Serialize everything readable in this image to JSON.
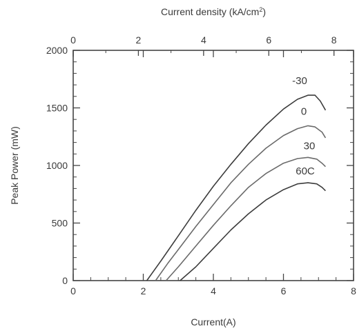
{
  "chart_data": {
    "type": "line",
    "xlabel": "Current(A)",
    "ylabel": "Peak Power (mW)",
    "top_xlabel_main": "Current density (kA/cm",
    "top_xlabel_sup": "2",
    "top_xlabel_end": ")",
    "xlim": [
      0,
      8
    ],
    "ylim": [
      0,
      2000
    ],
    "top_xlim": [
      0,
      8.6
    ],
    "xticks": [
      0,
      2,
      4,
      6,
      8
    ],
    "yticks": [
      0,
      500,
      1000,
      1500,
      2000
    ],
    "top_xticks": [
      0,
      2,
      4,
      6,
      8
    ],
    "grid": false,
    "series": [
      {
        "name": "-30",
        "color": "#3c3c3c",
        "x": [
          2.1,
          2.5,
          3.0,
          3.5,
          4.0,
          4.5,
          5.0,
          5.5,
          6.0,
          6.4,
          6.7,
          6.9,
          7.05,
          7.2
        ],
        "y": [
          0,
          170,
          390,
          610,
          820,
          1010,
          1190,
          1350,
          1490,
          1575,
          1610,
          1610,
          1560,
          1480
        ]
      },
      {
        "name": "0",
        "color": "#6a6a6a",
        "x": [
          2.35,
          2.7,
          3.0,
          3.5,
          4.0,
          4.5,
          5.0,
          5.5,
          6.0,
          6.4,
          6.7,
          6.9,
          7.1,
          7.2
        ],
        "y": [
          0,
          150,
          270,
          470,
          660,
          850,
          1010,
          1150,
          1260,
          1320,
          1345,
          1335,
          1290,
          1240
        ]
      },
      {
        "name": "30",
        "color": "#6a6a6a",
        "x": [
          2.65,
          3.0,
          3.5,
          4.0,
          4.5,
          5.0,
          5.5,
          6.0,
          6.4,
          6.7,
          6.95,
          7.1,
          7.2
        ],
        "y": [
          0,
          120,
          300,
          480,
          650,
          810,
          930,
          1020,
          1060,
          1070,
          1055,
          1020,
          990
        ]
      },
      {
        "name": "60C",
        "color": "#3c3c3c",
        "x": [
          3.05,
          3.5,
          4.0,
          4.5,
          5.0,
          5.5,
          6.0,
          6.4,
          6.7,
          6.95,
          7.1,
          7.2
        ],
        "y": [
          0,
          120,
          280,
          440,
          580,
          700,
          790,
          840,
          850,
          840,
          810,
          780
        ]
      }
    ]
  }
}
